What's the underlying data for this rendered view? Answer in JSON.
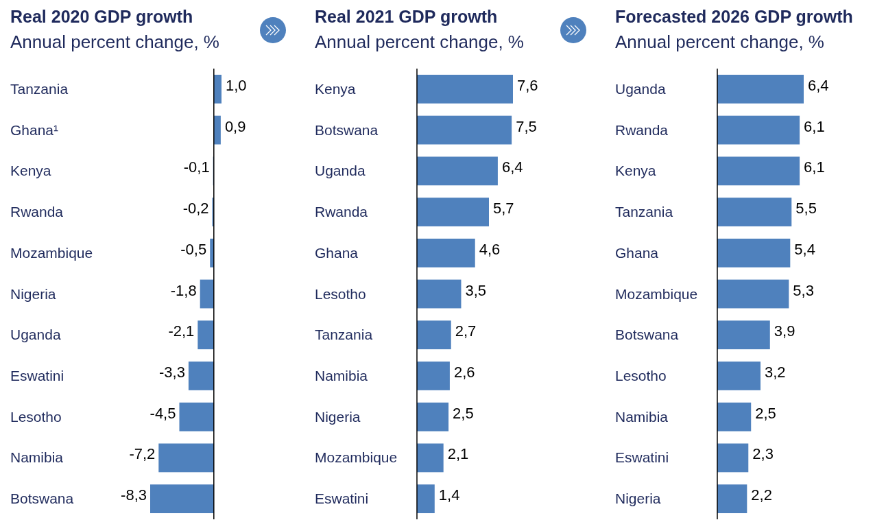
{
  "chart_data": [
    {
      "type": "bar",
      "orientation": "horizontal",
      "title": "Real 2020 GDP growth",
      "subtitle": "Annual percent change, %",
      "categories": [
        "Tanzania",
        "Ghana¹",
        "Kenya",
        "Rwanda",
        "Mozambique",
        "Nigeria",
        "Uganda",
        "Eswatini",
        "Lesotho",
        "Namibia",
        "Botswana"
      ],
      "values": [
        1.0,
        0.9,
        -0.1,
        -0.2,
        -0.5,
        -1.8,
        -2.1,
        -3.3,
        -4.5,
        -7.2,
        -8.3
      ],
      "value_labels": [
        "1,0",
        "0,9",
        "-0,1",
        "-0,2",
        "-0,5",
        "-1,8",
        "-2,1",
        "-3,3",
        "-4,5",
        "-7,2",
        "-8,3"
      ],
      "color": "#4f81bd"
    },
    {
      "type": "bar",
      "orientation": "horizontal",
      "title": "Real 2021 GDP growth",
      "subtitle": "Annual percent change, %",
      "categories": [
        "Kenya",
        "Botswana",
        "Uganda",
        "Rwanda",
        "Ghana",
        "Lesotho",
        "Tanzania",
        "Namibia",
        "Nigeria",
        "Mozambique",
        "Eswatini"
      ],
      "values": [
        7.6,
        7.5,
        6.4,
        5.7,
        4.6,
        3.5,
        2.7,
        2.6,
        2.5,
        2.1,
        1.4
      ],
      "value_labels": [
        "7,6",
        "7,5",
        "6,4",
        "5,7",
        "4,6",
        "3,5",
        "2,7",
        "2,6",
        "2,5",
        "2,1",
        "1,4"
      ],
      "color": "#4f81bd"
    },
    {
      "type": "bar",
      "orientation": "horizontal",
      "title": "Forecasted 2026 GDP growth",
      "subtitle": "Annual percent change, %",
      "categories": [
        "Uganda",
        "Rwanda",
        "Kenya",
        "Tanzania",
        "Ghana",
        "Mozambique",
        "Botswana",
        "Lesotho",
        "Namibia",
        "Eswatini",
        "Nigeria"
      ],
      "values": [
        6.4,
        6.1,
        6.1,
        5.5,
        5.4,
        5.3,
        3.9,
        3.2,
        2.5,
        2.3,
        2.2
      ],
      "value_labels": [
        "6,4",
        "6,1",
        "6,1",
        "5,5",
        "5,4",
        "5,3",
        "3,9",
        "3,2",
        "2,5",
        "2,3",
        "2,2"
      ],
      "color": "#4f81bd"
    }
  ]
}
